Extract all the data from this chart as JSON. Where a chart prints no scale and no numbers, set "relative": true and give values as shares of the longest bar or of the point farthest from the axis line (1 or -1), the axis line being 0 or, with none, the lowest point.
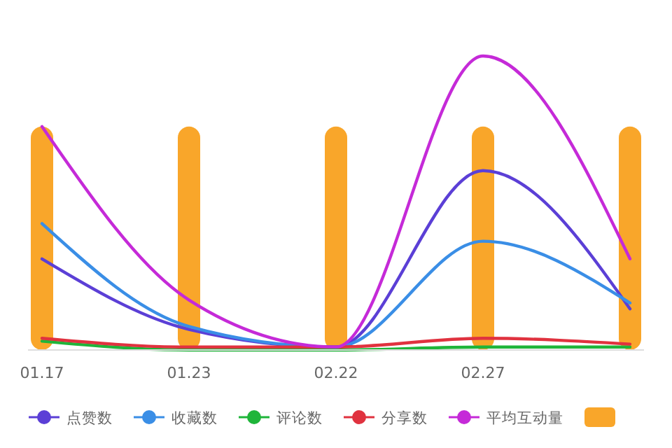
{
  "chart_data": {
    "type": "bar",
    "relative": true,
    "legend": "bottom",
    "categories": [
      "01.17",
      "01.23",
      "02.22",
      "02.27",
      null
    ],
    "series": [
      {
        "color": "#f9a62a",
        "values": [
          0.76,
          0.76,
          0.76,
          0.76,
          0.76
        ]
      },
      {
        "type": "line",
        "name": "点赞数",
        "color": "#5b3fd6",
        "values": [
          0.31,
          0.07,
          0.01,
          0.61,
          0.14
        ]
      },
      {
        "type": "line",
        "name": "收藏数",
        "color": "#3a8ee6",
        "values": [
          0.43,
          0.08,
          0.01,
          0.37,
          0.16
        ]
      },
      {
        "type": "line",
        "name": "评论数",
        "color": "#1fb53a",
        "values": [
          0.03,
          0.0,
          0.0,
          0.01,
          0.01
        ]
      },
      {
        "type": "line",
        "name": "分享数",
        "color": "#e0323f",
        "values": [
          0.04,
          0.01,
          0.01,
          0.04,
          0.02
        ]
      },
      {
        "type": "line",
        "name": "平均互动量",
        "color": "#c52ad8",
        "values": [
          0.76,
          0.17,
          0.01,
          1,
          0.31
        ]
      }
    ]
  }
}
